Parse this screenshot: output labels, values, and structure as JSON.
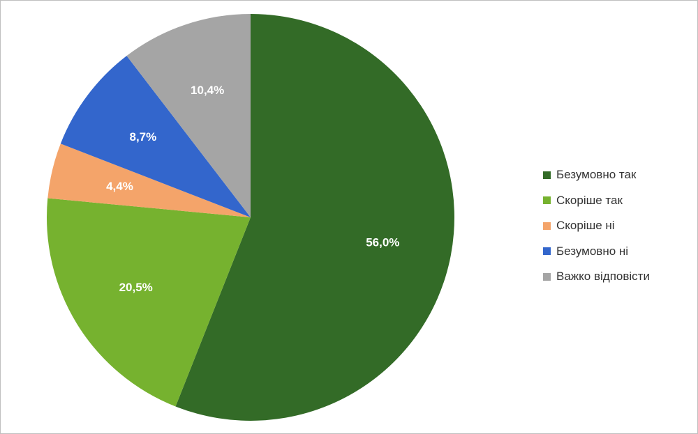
{
  "chart_data": {
    "type": "pie",
    "categories": [
      "Безумовно так",
      "Скоріше так",
      "Скоріше ні",
      "Безумовно ні",
      "Важко відповісти"
    ],
    "values": [
      56.0,
      20.5,
      4.4,
      8.7,
      10.4
    ],
    "value_labels": [
      "56,0%",
      "20,5%",
      "4,4%",
      "8,7%",
      "10,4%"
    ],
    "colors": [
      "#336b27",
      "#76b22f",
      "#f4a46a",
      "#3366cc",
      "#a5a5a5"
    ],
    "title": "",
    "start_angle": "12 o'clock",
    "direction": "clockwise",
    "legend_position": "right"
  },
  "legend": {
    "items": [
      {
        "label": "Безумовно так",
        "color": "#336b27"
      },
      {
        "label": "Скоріше так",
        "color": "#76b22f"
      },
      {
        "label": "Скоріше ні",
        "color": "#f4a46a"
      },
      {
        "label": "Безумовно ні",
        "color": "#3366cc"
      },
      {
        "label": "Важко відповісти",
        "color": "#a5a5a5"
      }
    ]
  }
}
